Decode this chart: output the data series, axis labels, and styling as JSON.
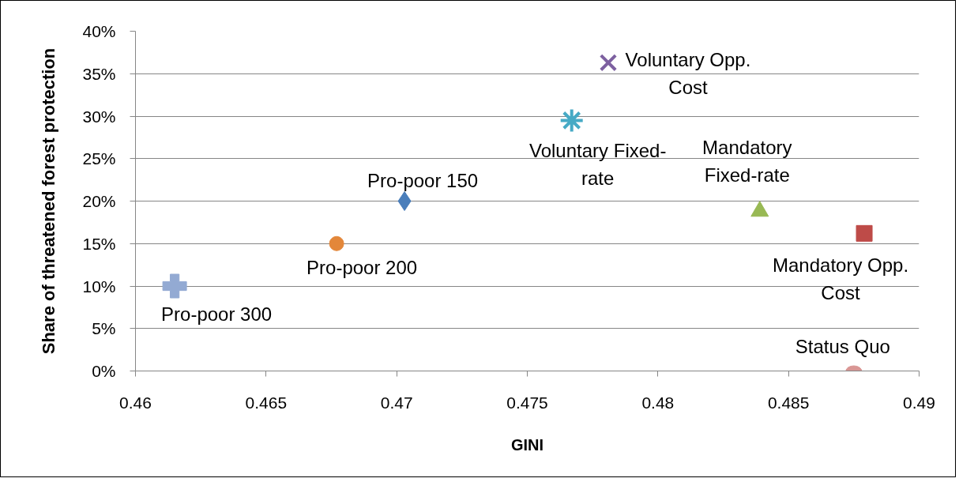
{
  "chart_data": {
    "type": "scatter",
    "xlabel": "GINI",
    "ylabel": "Share of threatened forest protection",
    "xlim": [
      0.46,
      0.49
    ],
    "xticks": [
      0.46,
      0.465,
      0.47,
      0.475,
      0.48,
      0.485,
      0.49
    ],
    "ylim": [
      0,
      40
    ],
    "yticks": [
      {
        "value": 0,
        "label": "0%"
      },
      {
        "value": 5,
        "label": "5%"
      },
      {
        "value": 10,
        "label": "10%"
      },
      {
        "value": 15,
        "label": "15%"
      },
      {
        "value": 20,
        "label": "20%"
      },
      {
        "value": 25,
        "label": "25%"
      },
      {
        "value": 30,
        "label": "30%"
      },
      {
        "value": 35,
        "label": "35%"
      },
      {
        "value": 40,
        "label": "40%"
      }
    ],
    "grid": "y",
    "series": [
      {
        "name": "Pro-poor 150",
        "color": "#4a7ebb",
        "marker": "diamond",
        "x": [
          0.4703
        ],
        "values": [
          20
        ]
      },
      {
        "name": "Mandatory Opp. Cost",
        "color": "#be4b48",
        "marker": "square",
        "x": [
          0.4879
        ],
        "values": [
          16.2
        ]
      },
      {
        "name": "Mandatory Fixed-rate",
        "color": "#98b954",
        "marker": "triangle",
        "x": [
          0.4839
        ],
        "values": [
          18.8
        ]
      },
      {
        "name": "Voluntary Opp. Cost",
        "color": "#7d60a0",
        "marker": "x",
        "x": [
          0.4781
        ],
        "values": [
          36.3
        ]
      },
      {
        "name": "Voluntary Fixed-rate",
        "color": "#46aac5",
        "x": [
          0.4767
        ],
        "values": [
          29.5
        ]
      },
      {
        "name": "Pro-poor 200",
        "color": "#e3873a",
        "marker": "circle",
        "x": [
          0.4677
        ],
        "values": [
          15
        ]
      },
      {
        "name": "Pro-poor 300",
        "color": "#93aad3",
        "marker": "cross",
        "x": [
          0.4615
        ],
        "values": [
          10
        ]
      },
      {
        "name": "Status Quo",
        "color": "#d99694",
        "x": [
          0.4875
        ],
        "values": [
          0
        ]
      }
    ]
  }
}
